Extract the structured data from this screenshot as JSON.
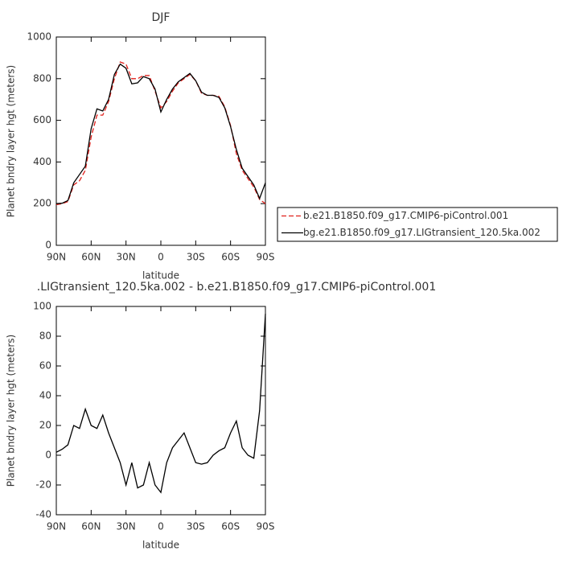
{
  "chart_data": [
    {
      "type": "line",
      "title": "DJF",
      "x_label": "latitude",
      "y_label": "Planet bndry layer hgt (meters)",
      "x": [
        90,
        85,
        80,
        75,
        70,
        65,
        60,
        55,
        50,
        45,
        40,
        35,
        30,
        25,
        20,
        15,
        10,
        5,
        0,
        -5,
        -10,
        -15,
        -20,
        -25,
        -30,
        -35,
        -40,
        -45,
        -50,
        -55,
        -60,
        -65,
        -70,
        -75,
        -80,
        -85,
        -90
      ],
      "series": [
        {
          "name": "b.e21.B1850.f09_g17.CMIP6-piControl.001",
          "color": "#e0201b",
          "line_style": "dashed",
          "values": [
            195,
            200,
            210,
            290,
            310,
            360,
            520,
            625,
            625,
            690,
            800,
            880,
            870,
            800,
            800,
            815,
            815,
            740,
            660,
            690,
            740,
            780,
            800,
            820,
            790,
            730,
            720,
            720,
            715,
            665,
            575,
            440,
            360,
            320,
            280,
            220,
            200
          ]
        },
        {
          "name": "bg.e21.B1850.f09_g17.LIGtransient_120.5ka.002",
          "color": "#000000",
          "line_style": "solid",
          "values": [
            200,
            202,
            215,
            300,
            340,
            380,
            560,
            655,
            645,
            700,
            820,
            870,
            850,
            775,
            780,
            810,
            800,
            750,
            640,
            700,
            750,
            785,
            805,
            825,
            790,
            735,
            720,
            720,
            710,
            660,
            570,
            460,
            370,
            330,
            290,
            225,
            300
          ]
        }
      ],
      "xlim": [
        90,
        -90
      ],
      "xticks": [
        {
          "value": 90,
          "label": "90N"
        },
        {
          "value": 60,
          "label": "60N"
        },
        {
          "value": 30,
          "label": "30N"
        },
        {
          "value": 0,
          "label": "0"
        },
        {
          "value": -30,
          "label": "30S"
        },
        {
          "value": -60,
          "label": "60S"
        },
        {
          "value": -90,
          "label": "90S"
        }
      ],
      "ylim": [
        0,
        1000
      ],
      "yticks": [
        0,
        200,
        400,
        600,
        800,
        1000
      ]
    },
    {
      "type": "line",
      "title": ".LIGtransient_120.5ka.002 - b.e21.B1850.f09_g17.CMIP6-piControl.001",
      "x_label": "latitude",
      "y_label": "Planet bndry layer hgt (meters)",
      "x": [
        90,
        85,
        80,
        75,
        70,
        65,
        60,
        55,
        50,
        45,
        40,
        35,
        30,
        25,
        20,
        15,
        10,
        5,
        0,
        -5,
        -10,
        -15,
        -20,
        -25,
        -30,
        -35,
        -40,
        -45,
        -50,
        -55,
        -60,
        -65,
        -70,
        -75,
        -80,
        -85,
        -90
      ],
      "series": [
        {
          "color": "#000000",
          "line_style": "solid",
          "values": [
            2,
            4,
            7,
            20,
            18,
            31,
            20,
            18,
            27,
            15,
            5,
            -5,
            -20,
            -5,
            -22,
            -20,
            -5,
            -20,
            -25,
            -5,
            5,
            10,
            15,
            5,
            -5,
            -6,
            -5,
            0,
            3,
            5,
            15,
            23,
            5,
            0,
            -2,
            30,
            95
          ]
        }
      ],
      "xlim": [
        90,
        -90
      ],
      "xticks": [
        {
          "value": 90,
          "label": "90N"
        },
        {
          "value": 60,
          "label": "60N"
        },
        {
          "value": 30,
          "label": "30N"
        },
        {
          "value": 0,
          "label": "0"
        },
        {
          "value": -30,
          "label": "30S"
        },
        {
          "value": -60,
          "label": "60S"
        },
        {
          "value": -90,
          "label": "90S"
        }
      ],
      "ylim": [
        -40,
        100
      ],
      "yticks": [
        -40,
        -20,
        0,
        20,
        40,
        60,
        80,
        100
      ]
    }
  ]
}
